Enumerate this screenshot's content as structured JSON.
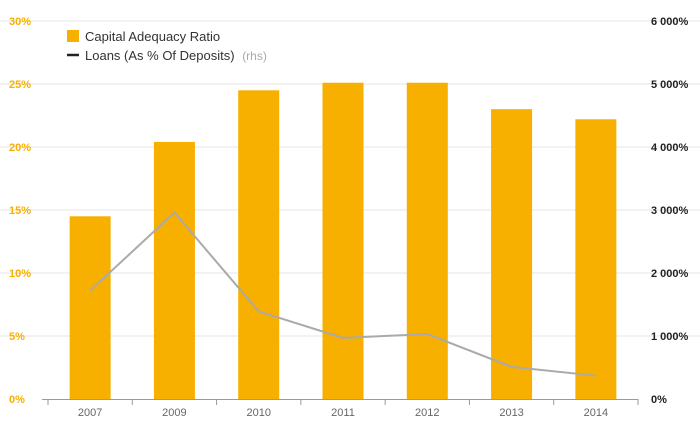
{
  "chart_data": {
    "type": "bar",
    "categories": [
      "2007",
      "2009",
      "2010",
      "2011",
      "2012",
      "2013",
      "2014"
    ],
    "series": [
      {
        "name": "Capital Adequacy Ratio",
        "type": "bar",
        "axis": "left",
        "color": "#f7af00",
        "values": [
          14.5,
          20.4,
          24.5,
          25.1,
          25.1,
          23.0,
          22.2
        ]
      },
      {
        "name": "Loans (As % Of Deposits)",
        "name_suffix": "(rhs)",
        "type": "line",
        "axis": "right",
        "color": "#aaaaaa",
        "legend_color": "#222222",
        "values": [
          1720,
          2960,
          1390,
          970,
          1030,
          510,
          370
        ]
      }
    ],
    "y_left": {
      "ylim": [
        0,
        30
      ],
      "ticks": [
        "0%",
        "5%",
        "10%",
        "15%",
        "20%",
        "25%",
        "30%"
      ],
      "tick_color": "#f7af00"
    },
    "y_right": {
      "ylim": [
        0,
        6000
      ],
      "ticks": [
        "0%",
        "1 000%",
        "2 000%",
        "3 000%",
        "4 000%",
        "5 000%",
        "6 000%"
      ]
    },
    "grid": true,
    "legend_position": "top-left",
    "title": "",
    "xlabel": "",
    "ylabel": ""
  }
}
